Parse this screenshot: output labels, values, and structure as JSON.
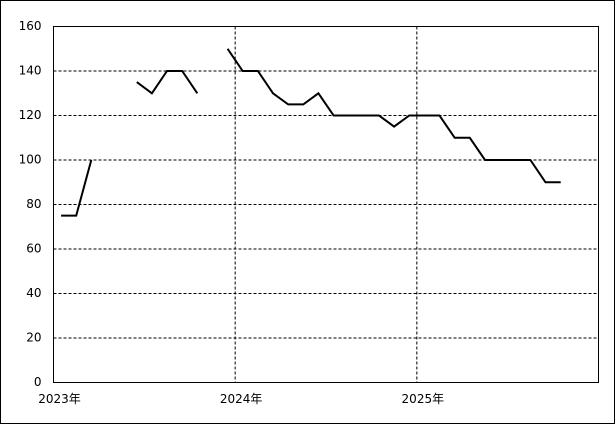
{
  "chart_data": {
    "type": "line",
    "categories": [
      "2023年",
      null,
      null,
      null,
      null,
      null,
      null,
      null,
      null,
      null,
      null,
      null,
      "2024年",
      null,
      null,
      null,
      null,
      null,
      null,
      null,
      null,
      null,
      null,
      null,
      "2025年",
      null,
      null,
      null,
      null,
      null,
      null,
      null,
      null,
      null,
      null,
      null
    ],
    "series": [
      {
        "color": "#000000",
        "values": [
          75,
          75,
          100,
          null,
          null,
          135,
          130,
          140,
          140,
          130,
          null,
          150,
          140,
          140,
          130,
          125,
          125,
          130,
          120,
          120,
          120,
          120,
          115,
          120,
          120,
          120,
          110,
          110,
          100,
          100,
          100,
          100,
          90,
          90,
          null,
          null
        ]
      }
    ],
    "ylim": [
      0,
      160
    ],
    "yticks": [
      0,
      20,
      40,
      60,
      80,
      100,
      120,
      140,
      160
    ],
    "grid": true
  }
}
